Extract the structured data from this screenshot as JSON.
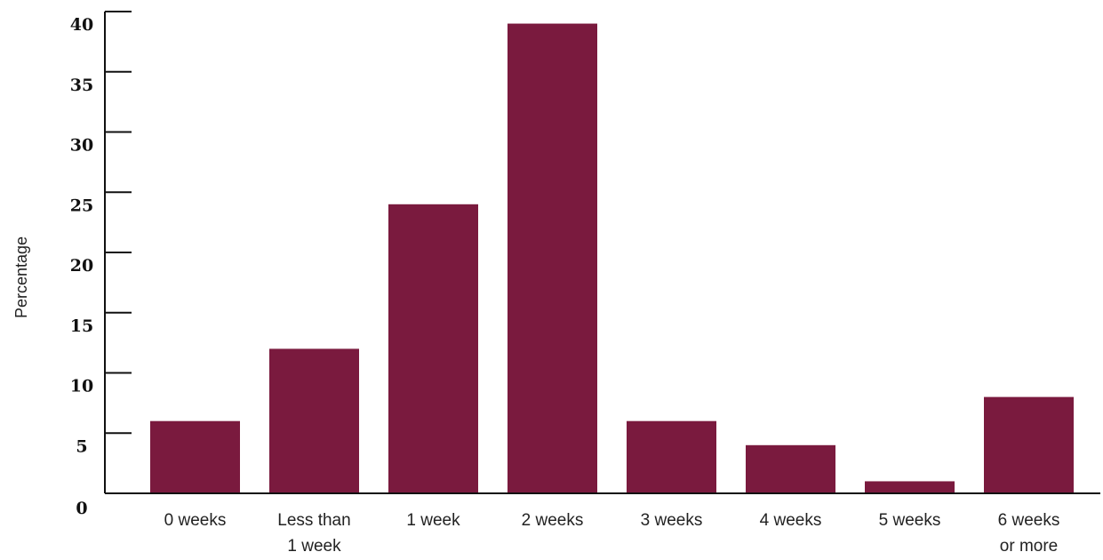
{
  "chart_data": {
    "type": "bar",
    "categories": [
      [
        "0 weeks"
      ],
      [
        "Less than",
        "1 week"
      ],
      [
        "1 week"
      ],
      [
        "2 weeks"
      ],
      [
        "3 weeks"
      ],
      [
        "4 weeks"
      ],
      [
        "5 weeks"
      ],
      [
        "6 weeks",
        "or more"
      ]
    ],
    "values": [
      6,
      12,
      24,
      39,
      6,
      4,
      1,
      8
    ],
    "ylabel": "Percentage",
    "xlabel": "",
    "ylim": [
      0,
      40
    ],
    "yticks": [
      0,
      5,
      10,
      15,
      20,
      25,
      30,
      35,
      40
    ],
    "grid": false,
    "bar_color": "#7a1a3e"
  }
}
